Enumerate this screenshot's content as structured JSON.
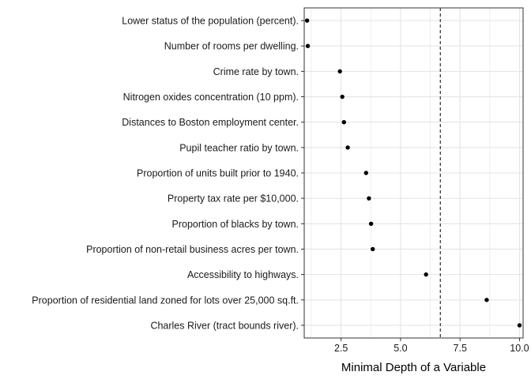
{
  "chart_data": {
    "type": "scatter",
    "title": "",
    "xlabel": "Minimal Depth of a Variable",
    "ylabel": "",
    "xlim": [
      0.95,
      10.15
    ],
    "x_ticks": [
      2.5,
      5.0,
      7.5,
      10.0
    ],
    "x_tick_labels": [
      "2.5",
      "5.0",
      "7.5",
      "10.0"
    ],
    "grid": true,
    "legend": "none",
    "threshold_line": {
      "x": 6.67,
      "style": "dashed"
    },
    "categories": [
      "Lower status of the population (percent).",
      "Number of rooms per dwelling.",
      "Crime rate by town.",
      "Nitrogen oxides concentration (10 ppm).",
      "Distances to Boston employment center.",
      "Pupil teacher ratio by town.",
      "Proportion of units built prior to 1940.",
      "Property tax rate per $10,000.",
      "Proportion of blacks by town.",
      "Proportion of non-retail business acres per town.",
      "Accessibility to highways.",
      "Proportion of residential land zoned for lots over 25,000 sq.ft.",
      "Charles River (tract bounds river)."
    ],
    "values": [
      1.07,
      1.1,
      2.45,
      2.55,
      2.62,
      2.78,
      3.55,
      3.67,
      3.76,
      3.83,
      6.07,
      8.62,
      10.0
    ],
    "colors": {
      "point": "#000000",
      "grid": "#e5e5e5",
      "border": "#333333",
      "threshold": "#000000"
    }
  }
}
